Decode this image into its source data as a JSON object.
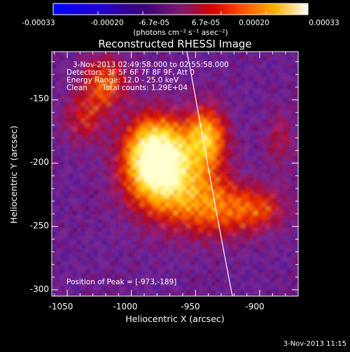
{
  "colorbar": {
    "tick_labels": [
      "-0.00033",
      "-0.00020",
      "-6.7e-05",
      "6.7e-05",
      "0.00020",
      "0.00033"
    ],
    "unit_label": "(photons cm⁻² s⁻¹ asec⁻²)",
    "colors": [
      "#0000ff",
      "#2200cc",
      "#3a007a",
      "#5a1488",
      "#7a3aa0",
      "#b0103a",
      "#e00000",
      "#ff5500",
      "#ff9a00",
      "#ffd000",
      "#ffff60",
      "#ffffff"
    ]
  },
  "title": "Reconstructed RHESSI Image",
  "info": {
    "time_range": "3-Nov-2013 02:49:58.000 to 02:55:58.000",
    "detectors": "Detectors: 3F 5F 6F 7F 8F 9F, Att 0",
    "energy_range": "Energy Range: 12.0 - 25.0 keV",
    "clean": "Clean",
    "total_counts": "Total counts: 1.29E+04",
    "peak": "Position of Peak = [-973,-189]"
  },
  "axes": {
    "xlabel": "Heliocentric X (arcsec)",
    "ylabel": "Heliocentric Y (arcsec)",
    "xlim": [
      -1062,
      -870
    ],
    "ylim": [
      -305,
      -112
    ],
    "xticks": [
      -1050,
      -1000,
      -950,
      -900
    ],
    "yticks": [
      -150,
      -200,
      -250,
      -300
    ],
    "xtick_labels": [
      "-1050",
      "-1000",
      "-950",
      "-900"
    ],
    "ytick_labels": [
      "-150",
      "-200",
      "-250",
      "-300"
    ]
  },
  "peak_position": [
    -973,
    -189
  ],
  "timestamp": "3-Nov-2013 11:15"
}
